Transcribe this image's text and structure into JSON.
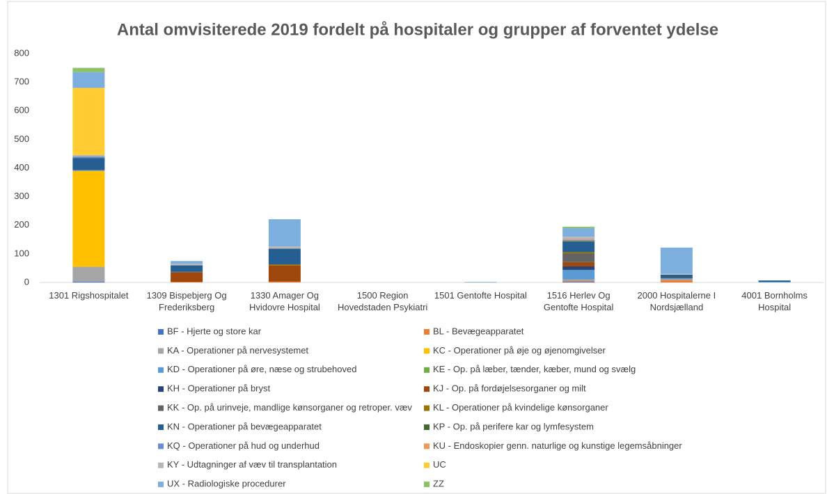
{
  "chart_data": {
    "type": "stacked_bar",
    "title": "Antal omvisiterede 2019 fordelt på hospitaler og grupper af forventet ydelse",
    "categories": [
      "1301 Rigshospitalet",
      "1309 Bispebjerg Og Frederiksberg",
      "1330 Amager Og Hvidovre Hospital",
      "1500 Region Hovedstaden Psykiatri",
      "1501 Gentofte Hospital",
      "1516 Herlev Og Gentofte Hospital",
      "2000 Hospitalerne I Nordsjælland",
      "4001 Bornholms Hospital"
    ],
    "series": [
      {
        "name": "BF - Hjerte og store kar",
        "color": "#4472c4",
        "values": [
          3,
          0,
          0,
          0,
          0,
          3,
          0,
          0
        ]
      },
      {
        "name": "BL - Bevægeapparatet",
        "color": "#ed7d31",
        "values": [
          0,
          2,
          3,
          0,
          0,
          3,
          8,
          0
        ]
      },
      {
        "name": "KA - Operationer på nervesystemet",
        "color": "#a5a5a5",
        "values": [
          52,
          0,
          0,
          0,
          0,
          5,
          3,
          0
        ]
      },
      {
        "name": "KC - Operationer på øje og øjenomgivelser",
        "color": "#ffc000",
        "values": [
          335,
          0,
          0,
          0,
          0,
          0,
          0,
          0
        ]
      },
      {
        "name": "KD - Operationer på øre, næse og strubehoved",
        "color": "#5b9bd5",
        "values": [
          3,
          0,
          0,
          0,
          0,
          33,
          3,
          2
        ]
      },
      {
        "name": "KE - Op. på læber, tænder, kæber, mund og svælg",
        "color": "#70ad47",
        "values": [
          0,
          0,
          0,
          0,
          0,
          0,
          0,
          0
        ]
      },
      {
        "name": "KH - Operationer på bryst",
        "color": "#264478",
        "values": [
          2,
          0,
          0,
          0,
          0,
          12,
          0,
          0
        ]
      },
      {
        "name": "KJ - Op. på fordøjelsesorganer og milt",
        "color": "#9e480e",
        "values": [
          0,
          33,
          57,
          0,
          0,
          15,
          0,
          0
        ]
      },
      {
        "name": "KK - Op. på urinveje, mandlige kønsorganer og retroper. væv",
        "color": "#636363",
        "values": [
          0,
          3,
          0,
          0,
          0,
          30,
          3,
          0
        ]
      },
      {
        "name": "KL - Operationer på kvindelige kønsorganer",
        "color": "#997300",
        "values": [
          0,
          0,
          3,
          0,
          0,
          5,
          0,
          0
        ]
      },
      {
        "name": "KN - Operationer på bevægeapparatet",
        "color": "#255e91",
        "values": [
          40,
          22,
          55,
          0,
          0,
          35,
          10,
          5
        ]
      },
      {
        "name": "KP - Op. på perifere kar og lymfesystem",
        "color": "#43682b",
        "values": [
          0,
          0,
          0,
          0,
          0,
          3,
          0,
          0
        ]
      },
      {
        "name": "KQ - Operationer på hud og underhud",
        "color": "#698ed0",
        "values": [
          5,
          0,
          0,
          0,
          0,
          5,
          0,
          0
        ]
      },
      {
        "name": "KU - Endoskopier genn. naturlige og kunstige legemsåbninger",
        "color": "#f1975a",
        "values": [
          0,
          0,
          0,
          0,
          0,
          3,
          0,
          0
        ]
      },
      {
        "name": "KY - Udtagninger af væv til transplantation",
        "color": "#b7b7b7",
        "values": [
          5,
          5,
          8,
          0,
          0,
          8,
          3,
          0
        ]
      },
      {
        "name": "UC",
        "color": "#ffcd33",
        "values": [
          235,
          0,
          0,
          0,
          0,
          0,
          0,
          0
        ]
      },
      {
        "name": "UX - Radiologiske procedurer",
        "color": "#7cafdd",
        "values": [
          55,
          10,
          95,
          0,
          2,
          30,
          92,
          0
        ]
      },
      {
        "name": "ZZ",
        "color": "#8cc168",
        "values": [
          15,
          0,
          0,
          0,
          0,
          5,
          0,
          0
        ]
      }
    ],
    "ylim": [
      0,
      800
    ],
    "yticks": [
      0,
      100,
      200,
      300,
      400,
      500,
      600,
      700,
      800
    ],
    "grid": false
  }
}
